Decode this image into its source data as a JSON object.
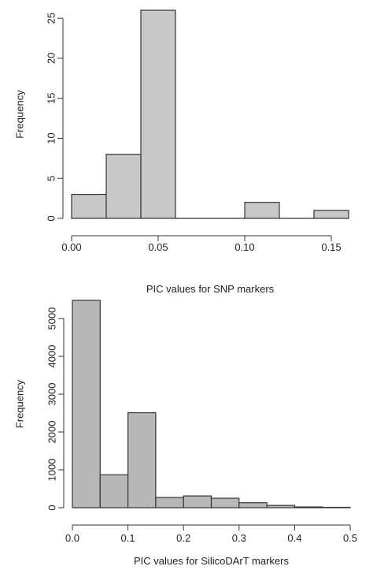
{
  "chart_data": [
    {
      "type": "histogram",
      "xlabel": "PIC values for SNP markers",
      "ylabel": "Frequency",
      "bin_edges": [
        0.0,
        0.02,
        0.04,
        0.06,
        0.08,
        0.1,
        0.12,
        0.14,
        0.16
      ],
      "counts": [
        3,
        8,
        26,
        0,
        0,
        2,
        0,
        1
      ],
      "xticks": [
        0.0,
        0.05,
        0.1,
        0.15
      ],
      "xtick_labels": [
        "0.00",
        "0.05",
        "0.10",
        "0.15"
      ],
      "yticks": [
        0,
        5,
        10,
        15,
        20,
        25
      ],
      "ytick_labels": [
        "0",
        "5",
        "10",
        "15",
        "20",
        "25"
      ],
      "xlim": [
        0.0,
        0.16
      ],
      "ylim": [
        0,
        26
      ],
      "bar_color": "#c6c9c8",
      "grid": false
    },
    {
      "type": "histogram",
      "xlabel": "PIC values for SilicoDArT markers",
      "ylabel": "Frequency",
      "bin_edges": [
        0.0,
        0.05,
        0.1,
        0.15,
        0.2,
        0.25,
        0.3,
        0.35,
        0.4,
        0.45,
        0.5
      ],
      "counts": [
        5480,
        870,
        2510,
        270,
        310,
        250,
        130,
        60,
        20,
        10
      ],
      "xticks": [
        0.0,
        0.1,
        0.2,
        0.3,
        0.4,
        0.5
      ],
      "xtick_labels": [
        "0.0",
        "0.1",
        "0.2",
        "0.3",
        "0.4",
        "0.5"
      ],
      "yticks": [
        0,
        1000,
        2000,
        3000,
        4000,
        5000
      ],
      "ytick_labels": [
        "0",
        "1000",
        "2000",
        "3000",
        "4000",
        "5000"
      ],
      "xlim": [
        0.0,
        0.5
      ],
      "ylim": [
        0,
        5480
      ],
      "bar_color": "#b6b9b8",
      "grid": false
    }
  ]
}
